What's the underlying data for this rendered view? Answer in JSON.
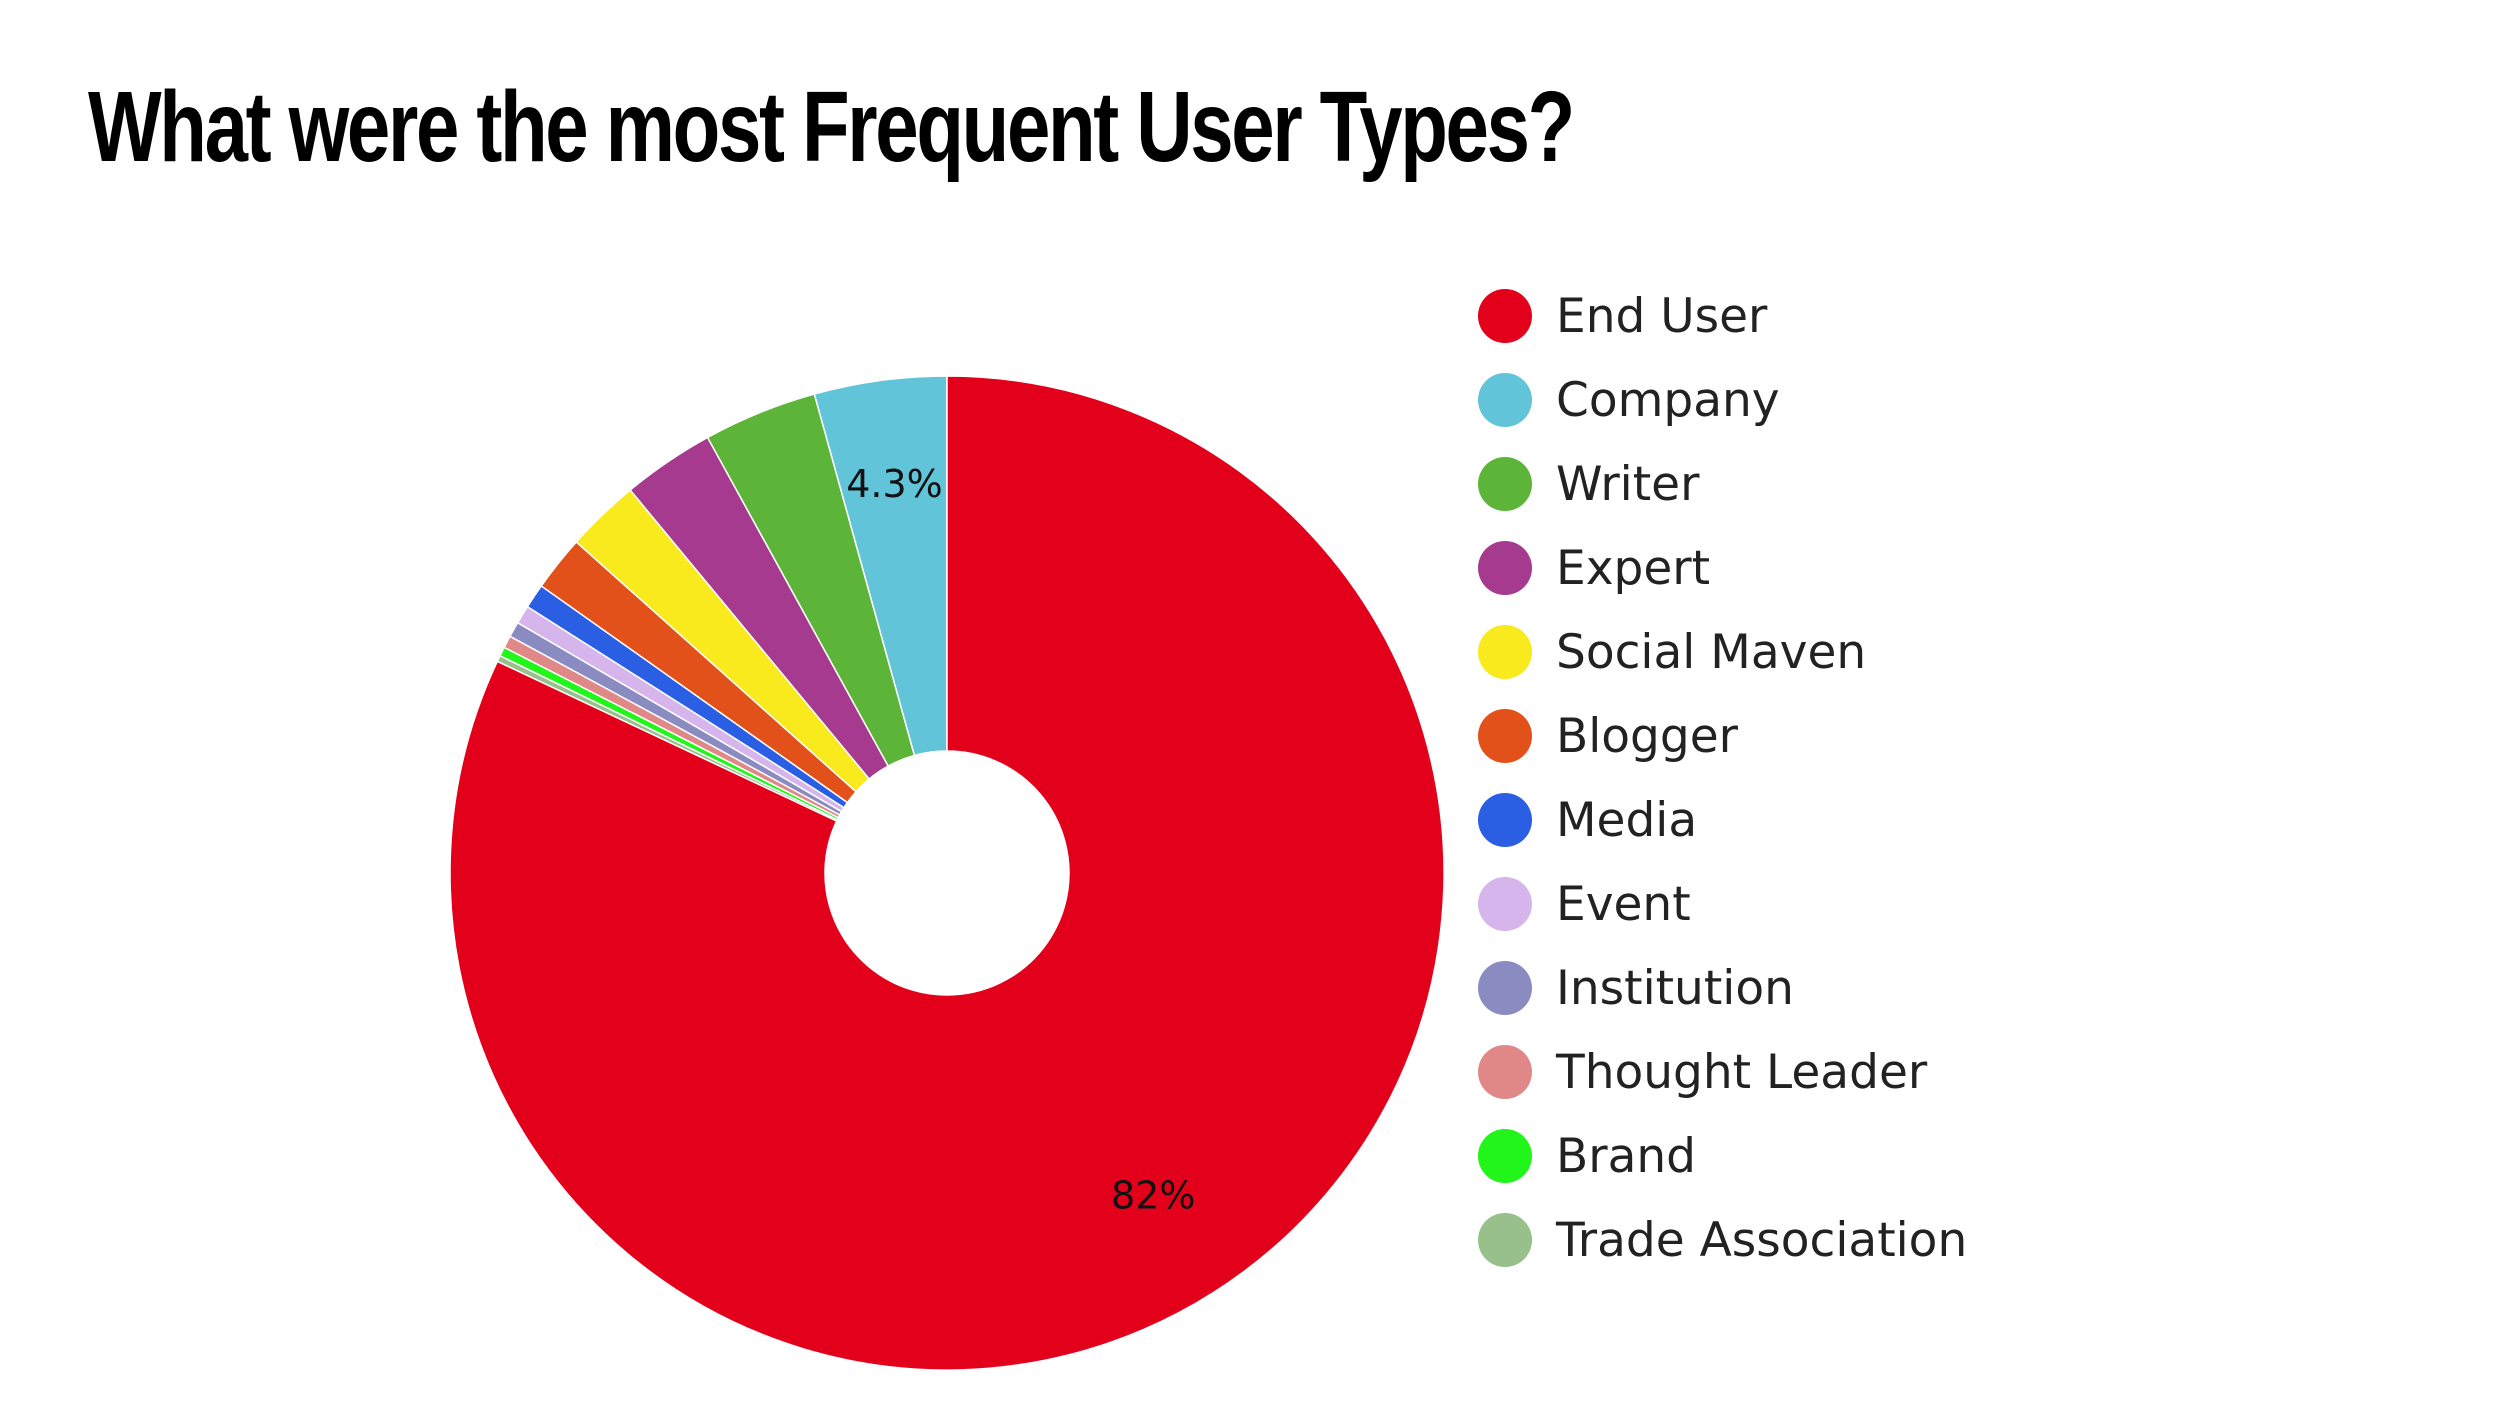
{
  "page": {
    "title": "What were the most Frequent User Types?"
  },
  "chart_data": {
    "type": "pie",
    "donut": true,
    "title": "What were the most Frequent User Types?",
    "legend_position": "right",
    "start_angle_deg": 0,
    "direction": "clockwise",
    "categories": [
      "End User",
      "Company",
      "Writer",
      "Expert",
      "Social Maven",
      "Blogger",
      "Media",
      "Event",
      "Institution",
      "Thought Leader",
      "Brand",
      "Trade Association"
    ],
    "values": [
      82,
      4.3,
      3.7,
      3.0,
      2.4,
      1.8,
      0.8,
      0.6,
      0.5,
      0.4,
      0.3,
      0.2
    ],
    "colors": [
      "#e3001b",
      "#62c4d8",
      "#5cb538",
      "#a63a8f",
      "#f8ea1d",
      "#e3511a",
      "#2b5fe3",
      "#d6b5ec",
      "#8a8bc0",
      "#e08888",
      "#21f51a",
      "#97c08a"
    ],
    "data_labels": [
      "82%",
      "4.3%",
      "",
      "",
      "",
      "",
      "",
      "",
      "",
      "",
      "",
      ""
    ]
  }
}
